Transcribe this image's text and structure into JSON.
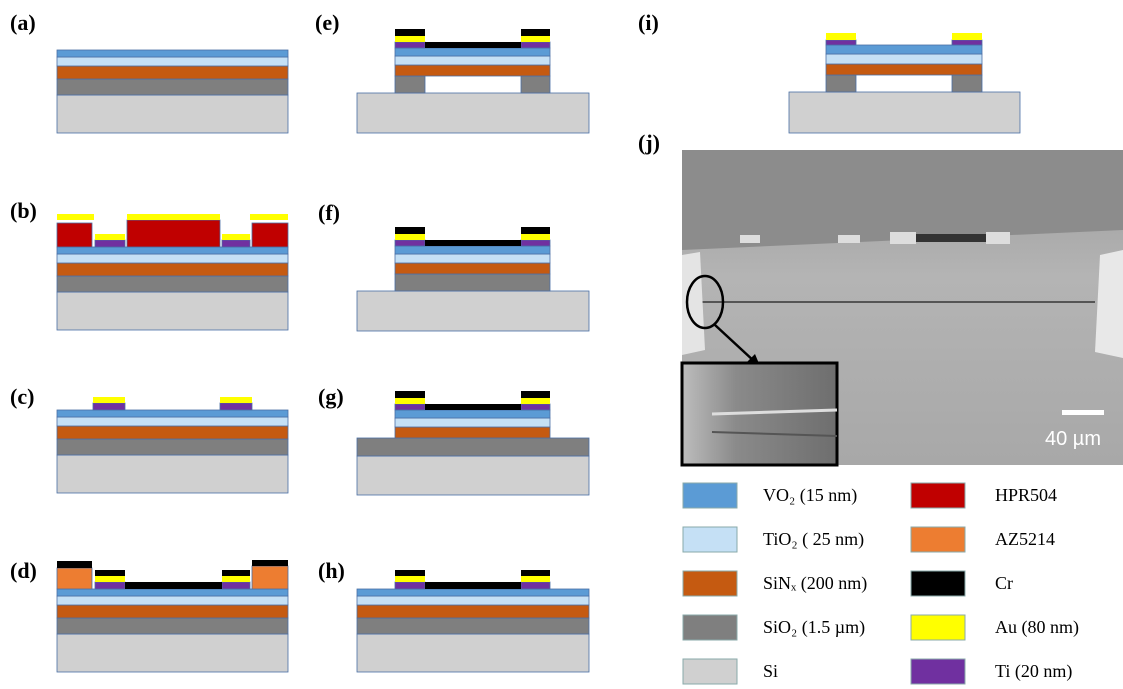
{
  "panels": [
    "(a)",
    "(b)",
    "(c)",
    "(d)",
    "(e)",
    "(f)",
    "(g)",
    "(h)",
    "(i)",
    "(j)"
  ],
  "scale_label": "40 µm",
  "legend": [
    {
      "label": "VO₂ (15 nm)",
      "color": "#5b9bd5"
    },
    {
      "label": "TiO₂ ( 25 nm)",
      "color": "#c5e0f5"
    },
    {
      "label": "SiNₓ (200 nm)",
      "color": "#c55a11"
    },
    {
      "label": "SiO₂ (1.5 µm)",
      "color": "#7f7f7f"
    },
    {
      "label": "Si",
      "color": "#d0d0d0"
    },
    {
      "label": "HPR504",
      "color": "#c00000"
    },
    {
      "label": "AZ5214",
      "color": "#ed7d31"
    },
    {
      "label": "Cr",
      "color": "#000000"
    },
    {
      "label": "Au (80 nm)",
      "color": "#ffff00"
    },
    {
      "label": "Ti (20 nm)",
      "color": "#7030a0"
    }
  ]
}
